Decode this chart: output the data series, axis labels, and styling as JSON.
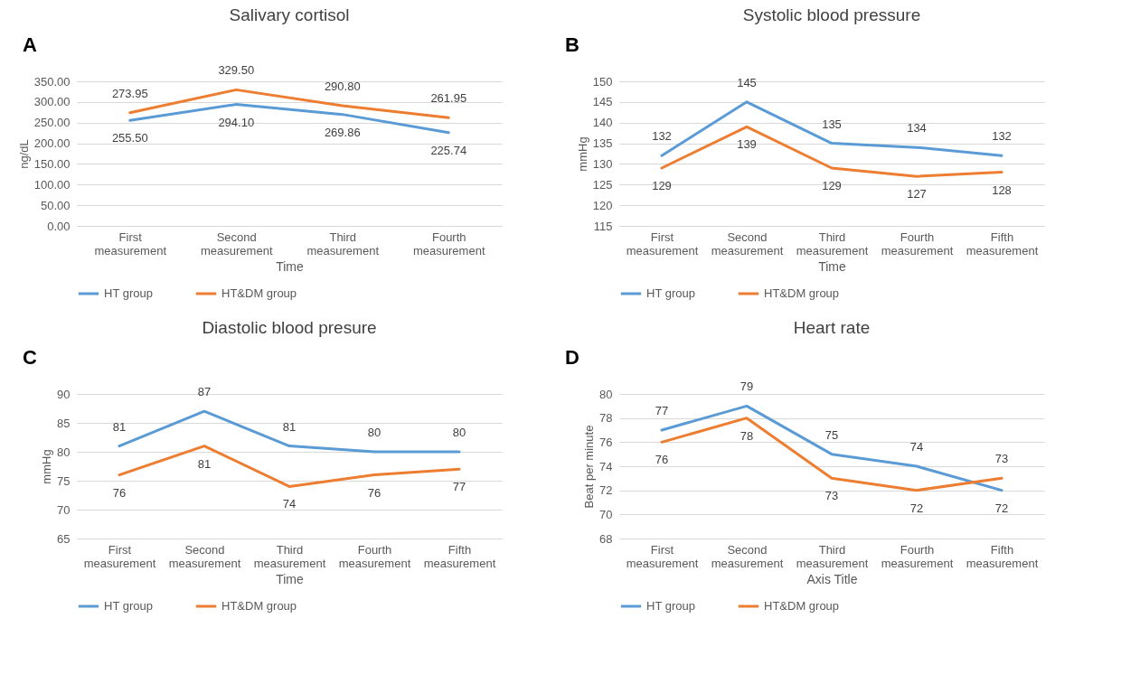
{
  "chart_data": [
    {
      "type": "line",
      "title": "Salivary cortisol",
      "xlabel": "Time",
      "ylabel": "ng/dL",
      "annotations": [
        "A"
      ],
      "categories": [
        "First measurement",
        "Second measurement",
        "Third measurement",
        "Fourth measurement"
      ],
      "series": [
        {
          "name": "HT group",
          "color": "#5b9bd5",
          "values": [
            255.5,
            294.1,
            269.86,
            225.74
          ],
          "value_labels": [
            "255.50",
            "294.10",
            "269.86",
            "225.74"
          ]
        },
        {
          "name": "HT&DM group",
          "color": "#ed7d31",
          "values": [
            273.95,
            329.5,
            290.8,
            261.95
          ],
          "value_labels": [
            "273.95",
            "329.50",
            "290.80",
            "261.95"
          ]
        }
      ],
      "ylim": [
        0,
        350
      ],
      "yticks": [
        {
          "value": 0,
          "label": "0.00"
        },
        {
          "value": 50,
          "label": "50.00"
        },
        {
          "value": 100,
          "label": "100.00"
        },
        {
          "value": 150,
          "label": "150.00"
        },
        {
          "value": 200,
          "label": "200.00"
        },
        {
          "value": 250,
          "label": "250.00"
        },
        {
          "value": 300,
          "label": "300.00"
        },
        {
          "value": 350,
          "label": "350.00"
        }
      ],
      "grid": "y",
      "legend": "bottom",
      "marker": "none",
      "line_style": "solid"
    },
    {
      "type": "line",
      "title": "Systolic blood pressure",
      "xlabel": "Time",
      "ylabel": "mmHg",
      "annotations": [
        "B"
      ],
      "categories": [
        "First measurement",
        "Second measurement",
        "Third measurement",
        "Fourth measurement",
        "Fifth measurement"
      ],
      "series": [
        {
          "name": "HT group",
          "color": "#5b9bd5",
          "values": [
            132,
            145,
            135,
            134,
            132
          ]
        },
        {
          "name": "HT&DM group",
          "color": "#ed7d31",
          "values": [
            129,
            139,
            129,
            127,
            128
          ]
        }
      ],
      "ylim": [
        115,
        150
      ],
      "yticks": [
        115,
        120,
        125,
        130,
        135,
        140,
        145,
        150
      ],
      "grid": "y",
      "legend": "bottom",
      "data_labels": true,
      "marker": "none",
      "line_style": "solid"
    },
    {
      "type": "line",
      "title": "Diastolic blood presure",
      "xlabel": "Time",
      "ylabel": "mmHg",
      "annotations": [
        "C"
      ],
      "categories": [
        "First measurement",
        "Second measurement",
        "Third measurement",
        "Fourth measurement",
        "Fifth measurement"
      ],
      "series": [
        {
          "name": "HT group",
          "color": "#5b9bd5",
          "values": [
            81,
            87,
            81,
            80,
            80
          ]
        },
        {
          "name": "HT&DM group",
          "color": "#ed7d31",
          "values": [
            76,
            81,
            74,
            76,
            77
          ]
        }
      ],
      "ylim": [
        65,
        90
      ],
      "yticks": [
        65,
        70,
        75,
        80,
        85,
        90
      ],
      "grid": "y",
      "legend": "bottom",
      "data_labels": true,
      "marker": "none",
      "line_style": "solid"
    },
    {
      "type": "line",
      "title": "Heart rate",
      "xlabel": "Axis Title",
      "ylabel": "Beat per minute",
      "annotations": [
        "D"
      ],
      "categories": [
        "First measurement",
        "Second measurement",
        "Third measurement",
        "Fourth measurement",
        "Fifth measurement"
      ],
      "series": [
        {
          "name": "HT group",
          "color": "#5b9bd5",
          "values": [
            77,
            79,
            75,
            74,
            72
          ]
        },
        {
          "name": "HT&DM group",
          "color": "#ed7d31",
          "values": [
            76,
            78,
            73,
            72,
            73
          ]
        }
      ],
      "ylim": [
        68,
        80
      ],
      "yticks": [
        68,
        70,
        72,
        74,
        76,
        78,
        80
      ],
      "grid": "y",
      "legend": "bottom",
      "data_labels": true,
      "marker": "none",
      "line_style": "solid"
    }
  ]
}
